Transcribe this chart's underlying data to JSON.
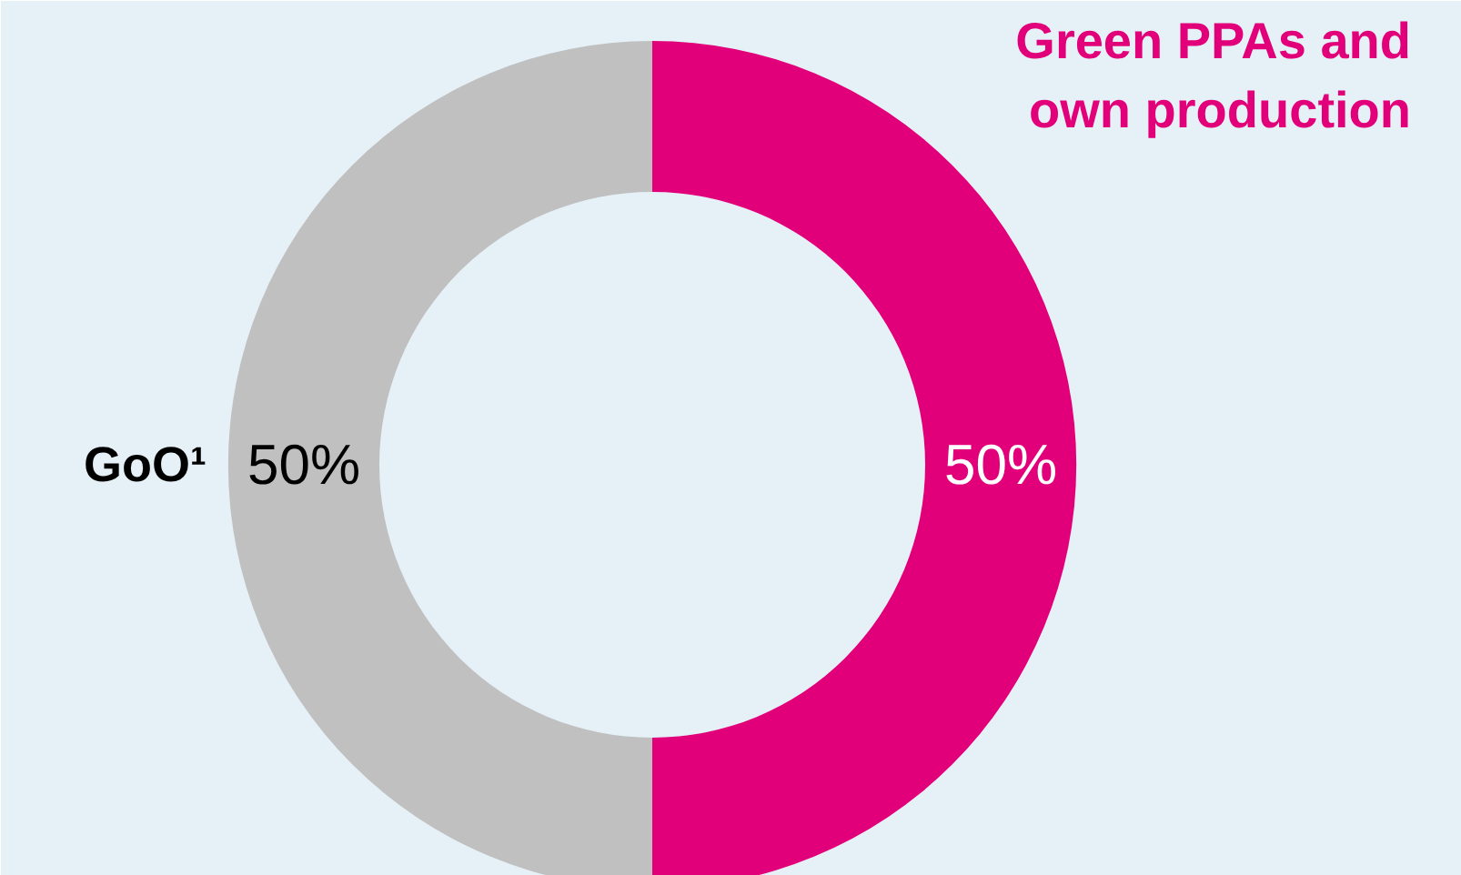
{
  "chart_data": {
    "type": "donut",
    "categories": [
      "Green PPAs and own production",
      "GoO¹"
    ],
    "values": [
      50,
      50
    ],
    "colors": [
      "#e2007a",
      "#c0c0c0"
    ],
    "value_labels": [
      "50%",
      "50%"
    ]
  }
}
